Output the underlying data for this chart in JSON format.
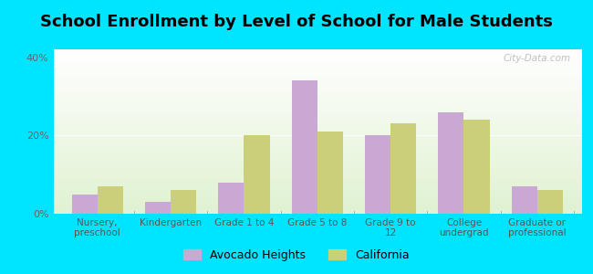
{
  "title": "School Enrollment by Level of School for Male Students",
  "categories": [
    "Nursery,\npreschool",
    "Kindergarten",
    "Grade 1 to 4",
    "Grade 5 to 8",
    "Grade 9 to\n12",
    "College\nundergrad",
    "Graduate or\nprofessional"
  ],
  "avocado_heights": [
    5,
    3,
    8,
    34,
    20,
    26,
    7
  ],
  "california": [
    7,
    6,
    20,
    21,
    23,
    24,
    6
  ],
  "avocado_color": "#c9a8d4",
  "california_color": "#cccf7a",
  "background_outer": "#00e5ff",
  "ylim": [
    0,
    42
  ],
  "yticks": [
    0,
    20,
    40
  ],
  "ytick_labels": [
    "0%",
    "20%",
    "40%"
  ],
  "bar_width": 0.35,
  "legend_labels": [
    "Avocado Heights",
    "California"
  ],
  "title_fontsize": 13,
  "watermark": "City-Data.com"
}
